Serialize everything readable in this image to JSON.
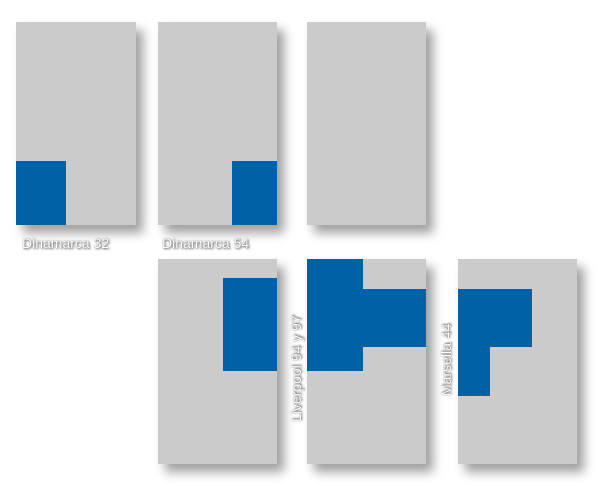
{
  "labels": {
    "dinamarca_32": "Dinamarca 32",
    "dinamarca_54": "Dinamarca 54",
    "liverpool": "Liverpool 94 y 97",
    "marsella": "Marsella 44"
  },
  "colors": {
    "panel": "#cbcbcb",
    "highlight": "#0061a6",
    "label": "#ffffff"
  }
}
